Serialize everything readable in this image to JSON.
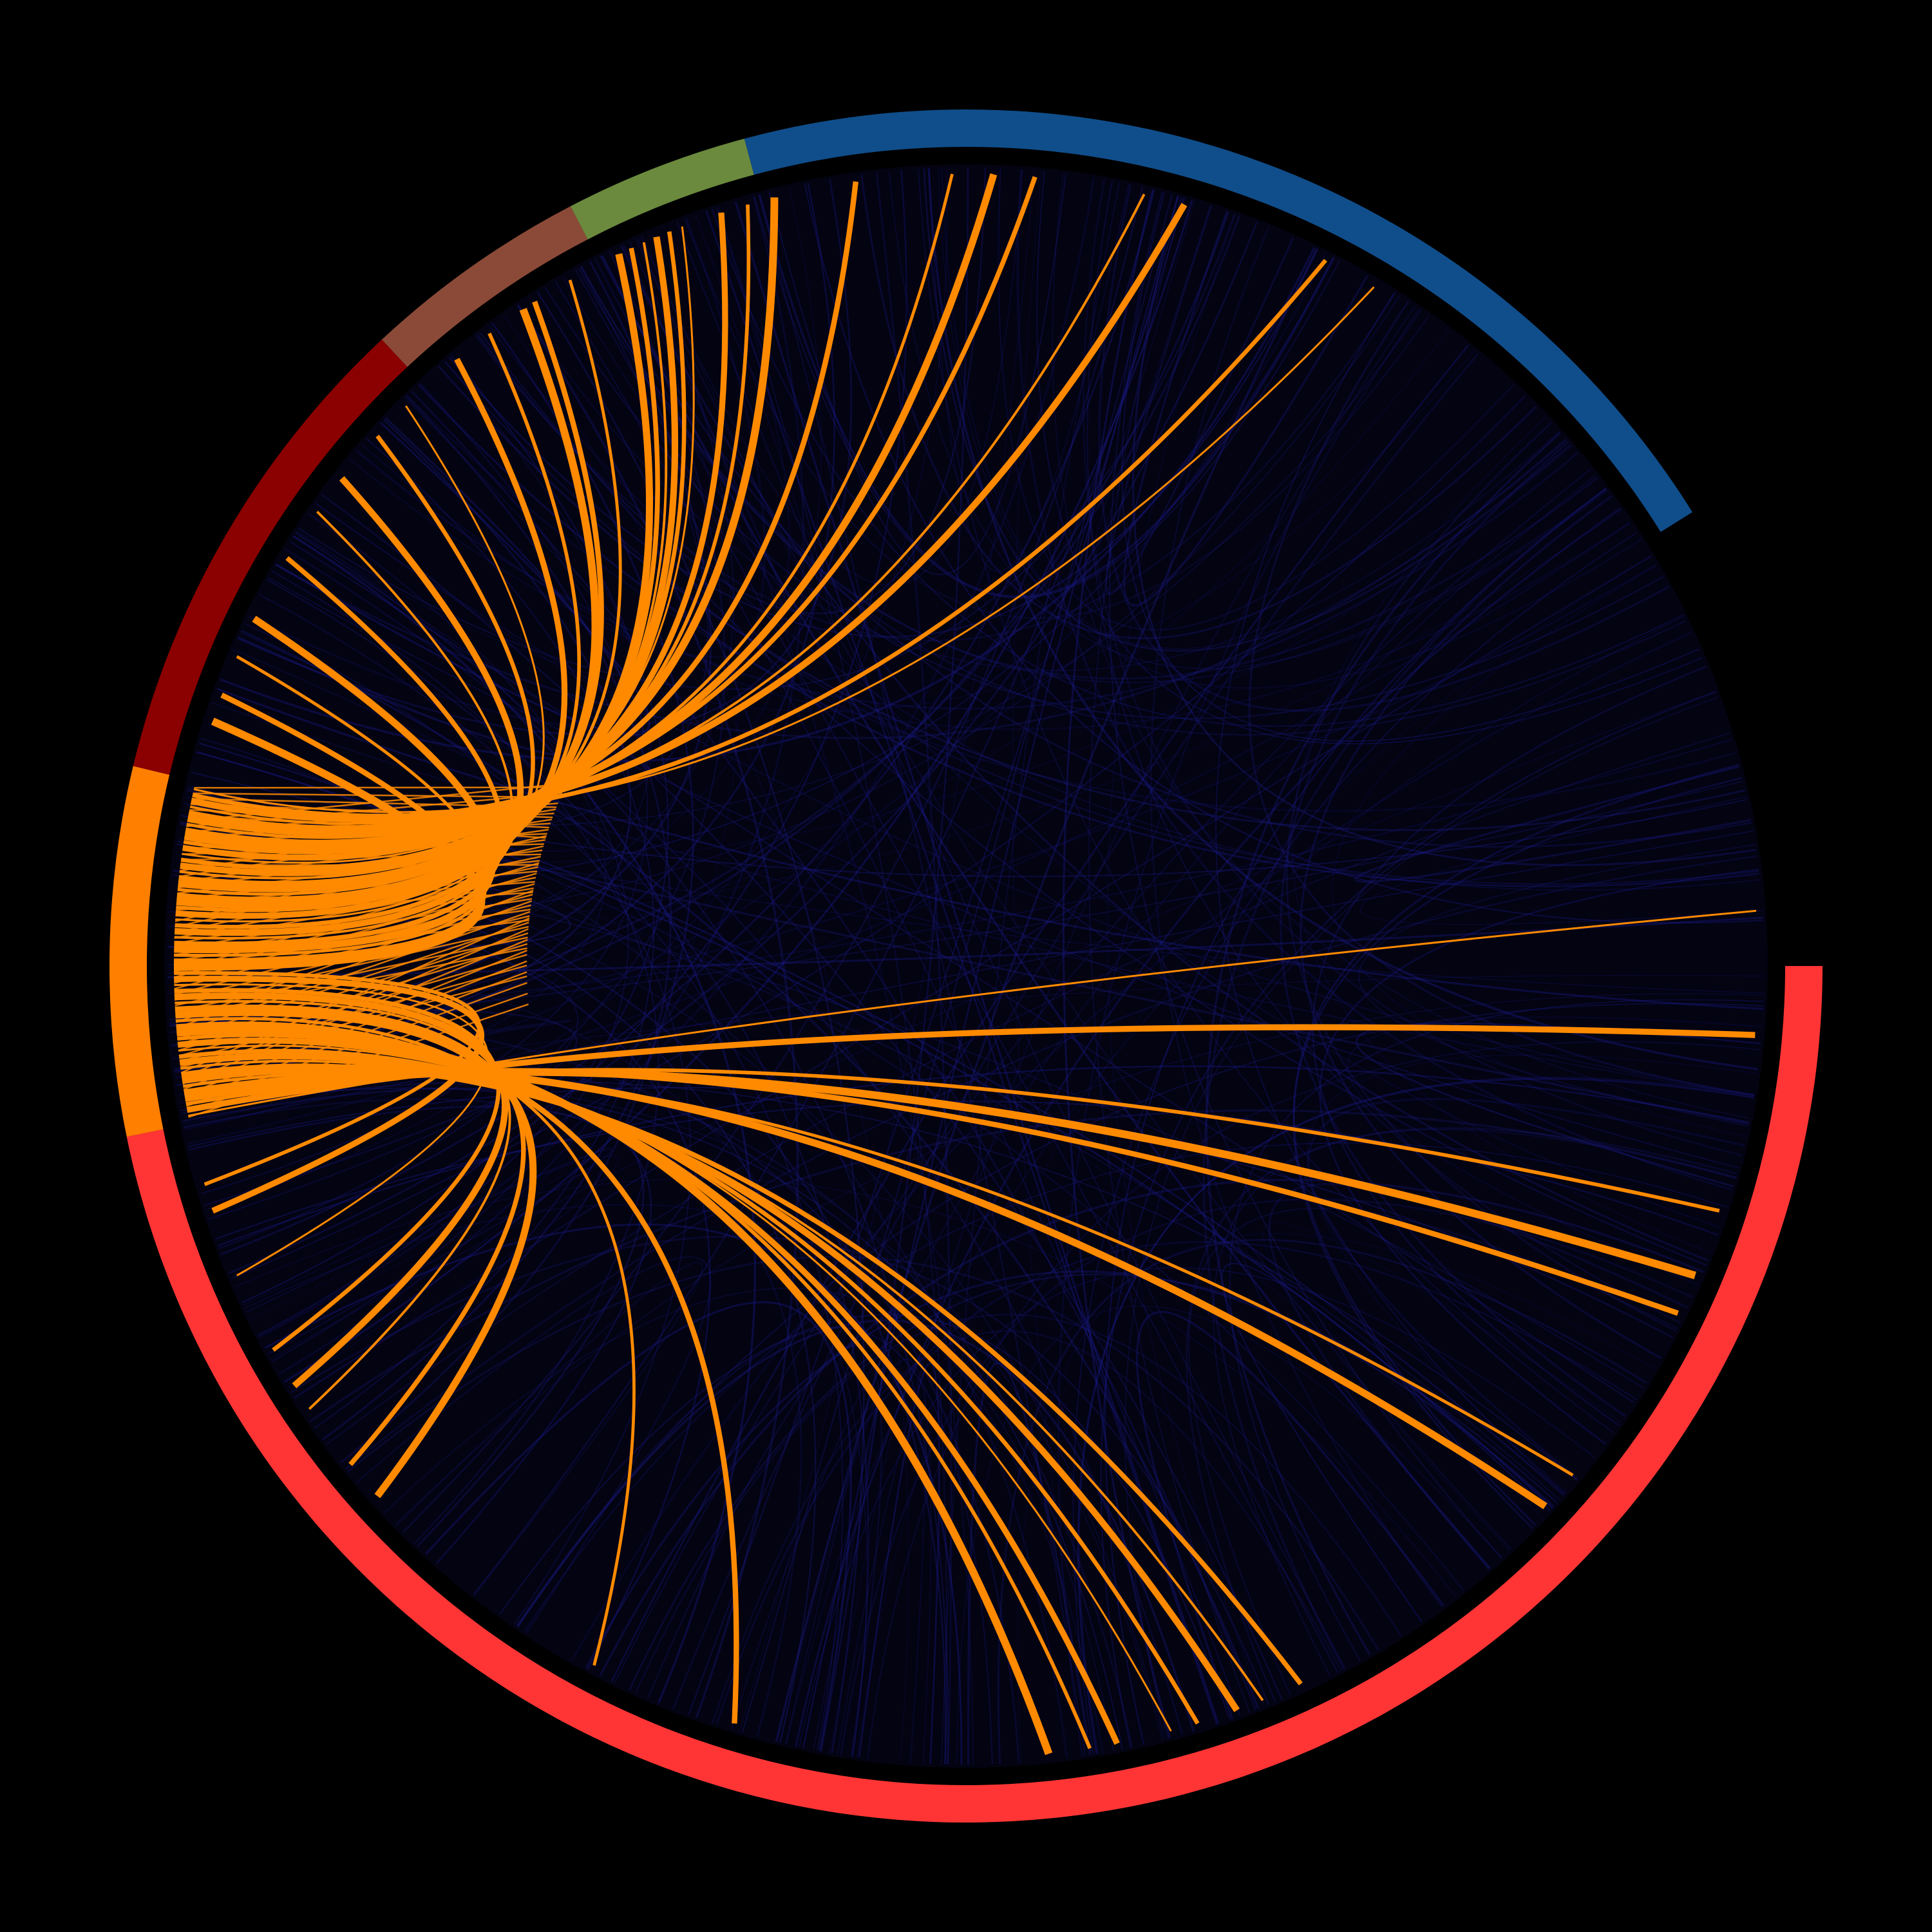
{
  "diagram": {
    "type": "chord",
    "background_color": "#000000",
    "inner_fill_color": "#030312",
    "background_link_color": "#1a1a8a",
    "highlight_link_color": "#ff8a00",
    "groups": [
      {
        "id": "red",
        "color": "#ff3535",
        "start_angle": 0,
        "end_angle": 168.5
      },
      {
        "id": "orange",
        "color": "#ff7f00",
        "start_angle": 168.5,
        "end_angle": 193.5
      },
      {
        "id": "darkred",
        "color": "#8b0000",
        "start_angle": 193.5,
        "end_angle": 227
      },
      {
        "id": "brown",
        "color": "#8b4a38",
        "start_angle": 227,
        "end_angle": 242.5
      },
      {
        "id": "green",
        "color": "#6b8a3e",
        "start_angle": 242.5,
        "end_angle": 255
      },
      {
        "id": "blue",
        "color": "#104e8b",
        "start_angle": 255,
        "end_angle": 328
      }
    ],
    "highlight_group": "orange",
    "highlight_link_angles": [
      356,
      5,
      18,
      23,
      26,
      40,
      43,
      65,
      68,
      70,
      73,
      75,
      79,
      81,
      84,
      107,
      118,
      138,
      141,
      146,
      148,
      151,
      157,
      162,
      164,
      198,
      200,
      203,
      206,
      211,
      215,
      218,
      222,
      225,
      230,
      233,
      236,
      237,
      240,
      244,
      245,
      246,
      247,
      248,
      249,
      252,
      254,
      256,
      262,
      269,
      272,
      275,
      283,
      286,
      297,
      301
    ]
  }
}
